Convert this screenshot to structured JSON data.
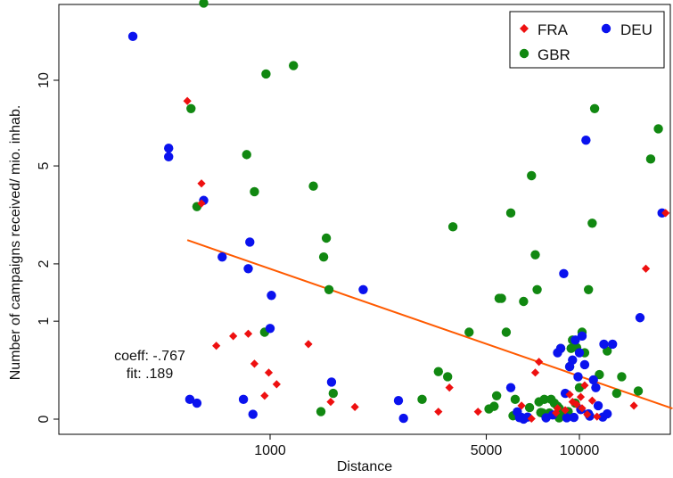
{
  "chart_data": {
    "type": "scatter",
    "xlabel": "Distance",
    "ylabel": "Number of campaigns received/ mio. inhab.",
    "x_scale": "log",
    "xlim": [
      250,
      20000
    ],
    "x_ticks": [
      1000,
      5000,
      10000
    ],
    "x_tick_labels": [
      "1000",
      "5000",
      "10000"
    ],
    "y_scale": "log",
    "y_ticks": [
      0,
      1,
      2,
      5,
      10
    ],
    "y_tick_labels": [
      "0",
      "1",
      "2",
      "5",
      "10"
    ],
    "grid": false,
    "legend_position": "top-right",
    "annotations": [
      "coeff: -.767",
      "fit: .189"
    ],
    "fit_line": {
      "x": [
        540,
        20000
      ],
      "y": [
        2.55,
        0.078
      ],
      "color": "#ff5a00"
    },
    "series": [
      {
        "name": "FRA",
        "marker": "diamond",
        "color": "#ee1010",
        "points": [
          [
            540,
            8.5
          ],
          [
            600,
            4.3
          ],
          [
            600,
            3.6
          ],
          [
            670,
            0.68
          ],
          [
            760,
            0.8
          ],
          [
            850,
            0.83
          ],
          [
            890,
            0.48
          ],
          [
            960,
            0.18
          ],
          [
            990,
            0.39
          ],
          [
            1050,
            0.28
          ],
          [
            1330,
            0.7
          ],
          [
            1570,
            0.13
          ],
          [
            1880,
            0.09
          ],
          [
            3500,
            0.054
          ],
          [
            3800,
            0.25
          ],
          [
            4700,
            0.054
          ],
          [
            6500,
            0.1
          ],
          [
            7000,
            0.0035
          ],
          [
            7200,
            0.39
          ],
          [
            7400,
            0.5
          ],
          [
            8400,
            0.045
          ],
          [
            8500,
            0.08
          ],
          [
            9000,
            0.065
          ],
          [
            9300,
            0.19
          ],
          [
            9500,
            0.13
          ],
          [
            9800,
            0.11
          ],
          [
            10100,
            0.17
          ],
          [
            10200,
            0.08
          ],
          [
            10400,
            0.27
          ],
          [
            10600,
            0.034
          ],
          [
            11000,
            0.14
          ],
          [
            11400,
            0.018
          ],
          [
            15000,
            0.1
          ],
          [
            16400,
            1.9
          ],
          [
            19000,
            3.3
          ]
        ]
      },
      {
        "name": "GBR",
        "marker": "circle",
        "color": "#118811",
        "points": [
          [
            260,
            90
          ],
          [
            555,
            8
          ],
          [
            580,
            3.5
          ],
          [
            610,
            18
          ],
          [
            840,
            5.5
          ],
          [
            890,
            4
          ],
          [
            930,
            90
          ],
          [
            960,
            0.85
          ],
          [
            970,
            10.5
          ],
          [
            1190,
            11.2
          ],
          [
            1380,
            4.2
          ],
          [
            1460,
            0.055
          ],
          [
            1490,
            2.15
          ],
          [
            1520,
            2.6
          ],
          [
            1550,
            1.5
          ],
          [
            1600,
            0.2
          ],
          [
            1720,
            55
          ],
          [
            3100,
            0.15
          ],
          [
            3500,
            0.4
          ],
          [
            3750,
            0.35
          ],
          [
            3900,
            2.9
          ],
          [
            4400,
            0.85
          ],
          [
            5100,
            0.075
          ],
          [
            5300,
            0.095
          ],
          [
            5400,
            0.18
          ],
          [
            5500,
            1.35
          ],
          [
            5600,
            1.35
          ],
          [
            5800,
            0.85
          ],
          [
            6000,
            3.3
          ],
          [
            6100,
            0.024
          ],
          [
            6200,
            0.15
          ],
          [
            6600,
            1.3
          ],
          [
            6900,
            0.085
          ],
          [
            7000,
            4.6
          ],
          [
            7200,
            2.2
          ],
          [
            7300,
            1.5
          ],
          [
            7400,
            0.13
          ],
          [
            7500,
            0.048
          ],
          [
            7600,
            0.045
          ],
          [
            7700,
            0.15
          ],
          [
            8000,
            0.045
          ],
          [
            8100,
            0.15
          ],
          [
            8300,
            0.12
          ],
          [
            8500,
            0.095
          ],
          [
            8600,
            0.08
          ],
          [
            8700,
            0.65
          ],
          [
            8800,
            0.055
          ],
          [
            9000,
            0.035
          ],
          [
            9200,
            0.055
          ],
          [
            9300,
            0.45
          ],
          [
            9400,
            0.65
          ],
          [
            9500,
            0.75
          ],
          [
            9700,
            0.12
          ],
          [
            9800,
            0.66
          ],
          [
            10000,
            0.25
          ],
          [
            10200,
            0.85
          ],
          [
            10400,
            0.6
          ],
          [
            10700,
            1.5
          ],
          [
            11000,
            3.0
          ],
          [
            11200,
            8.0
          ],
          [
            11600,
            0.37
          ],
          [
            12300,
            0.62
          ],
          [
            13200,
            0.2
          ],
          [
            13700,
            0.35
          ],
          [
            15500,
            0.22
          ],
          [
            17000,
            5.3
          ],
          [
            18000,
            6.8
          ],
          [
            8600,
            0.009
          ]
        ]
      },
      {
        "name": "DEU",
        "marker": "circle",
        "color": "#0a12ee",
        "points": [
          [
            360,
            14
          ],
          [
            470,
            5.8
          ],
          [
            470,
            5.4
          ],
          [
            550,
            0.15
          ],
          [
            580,
            0.12
          ],
          [
            610,
            3.7
          ],
          [
            620,
            20
          ],
          [
            700,
            2.15
          ],
          [
            820,
            0.15
          ],
          [
            850,
            1.9
          ],
          [
            860,
            2.5
          ],
          [
            880,
            0.035
          ],
          [
            1000,
            0.9
          ],
          [
            1010,
            1.4
          ],
          [
            1510,
            55
          ],
          [
            1580,
            0.3
          ],
          [
            2000,
            1.5
          ],
          [
            2400,
            50
          ],
          [
            2600,
            0.14
          ],
          [
            2700,
            0.0062
          ],
          [
            6000,
            0.25
          ],
          [
            6300,
            0.053
          ],
          [
            6400,
            0.011
          ],
          [
            6500,
            0.012
          ],
          [
            6600,
            0.0006
          ],
          [
            6800,
            0.015
          ],
          [
            7800,
            0.0095
          ],
          [
            8200,
            0.03
          ],
          [
            8500,
            0.6
          ],
          [
            8700,
            0.65
          ],
          [
            8900,
            1.8
          ],
          [
            9000,
            0.2
          ],
          [
            9100,
            0.01
          ],
          [
            9300,
            0.45
          ],
          [
            9500,
            0.52
          ],
          [
            9600,
            0.012
          ],
          [
            9700,
            0.75
          ],
          [
            9900,
            0.35
          ],
          [
            10000,
            0.6
          ],
          [
            10100,
            0.07
          ],
          [
            10200,
            0.8
          ],
          [
            10400,
            0.47
          ],
          [
            10500,
            6.2
          ],
          [
            10700,
            0.038
          ],
          [
            10800,
            0.022
          ],
          [
            11100,
            0.32
          ],
          [
            11300,
            0.25
          ],
          [
            11500,
            0.1
          ],
          [
            11900,
            0.015
          ],
          [
            12000,
            0.7
          ],
          [
            12300,
            0.038
          ],
          [
            12800,
            0.7
          ],
          [
            15700,
            1.05
          ],
          [
            18500,
            3.3
          ]
        ]
      }
    ]
  }
}
